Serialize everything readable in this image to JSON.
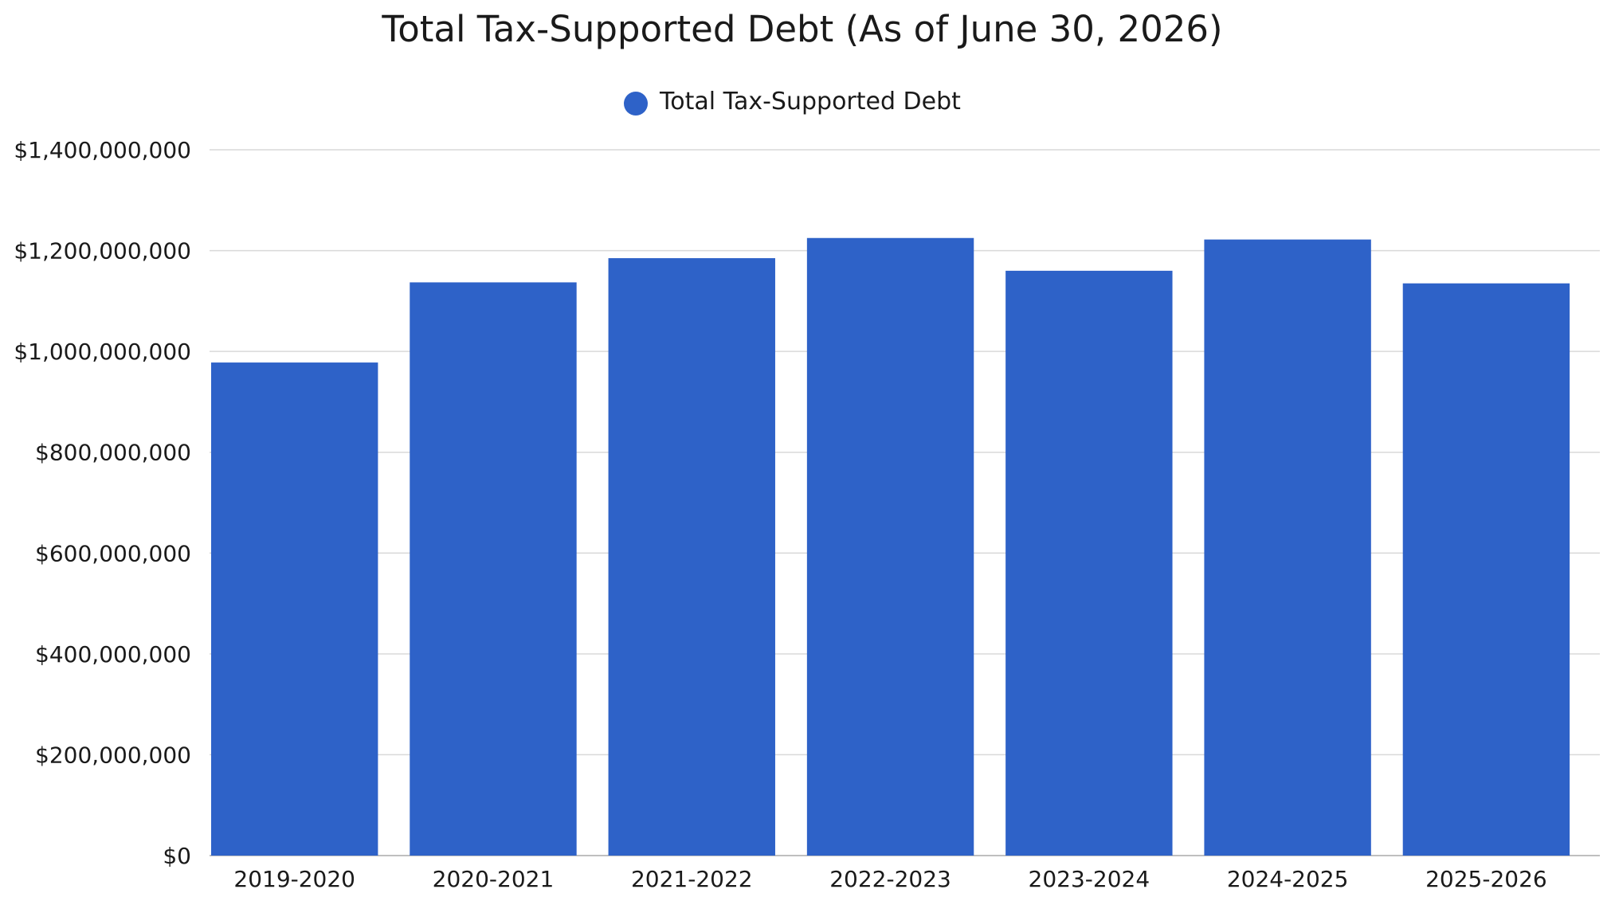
{
  "chart_data": {
    "type": "bar",
    "title": "Total Tax-Supported Debt (As of June 30, 2026)",
    "xlabel": "",
    "ylabel": "",
    "categories": [
      "2019-2020",
      "2020-2021",
      "2021-2022",
      "2022-2023",
      "2023-2024",
      "2024-2025",
      "2025-2026"
    ],
    "series": [
      {
        "name": "Total Tax-Supported Debt",
        "color": "#2e62c8",
        "values": [
          978000000,
          1137000000,
          1185000000,
          1225000000,
          1160000000,
          1222000000,
          1135000000
        ]
      }
    ],
    "ylim": [
      0,
      1400000000
    ],
    "yticks": [
      0,
      200000000,
      400000000,
      600000000,
      800000000,
      1000000000,
      1200000000,
      1400000000
    ],
    "ytick_labels": [
      "$0",
      "$200,000,000",
      "$400,000,000",
      "$600,000,000",
      "$800,000,000",
      "$1,000,000,000",
      "$1,200,000,000",
      "$1,400,000,000"
    ],
    "grid": true,
    "legend_position": "top-center"
  }
}
